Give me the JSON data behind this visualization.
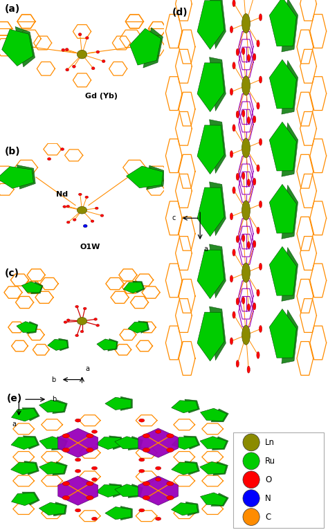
{
  "background_color": "#ffffff",
  "legend_items": [
    {
      "label": "Ln",
      "color": "#8B8B00"
    },
    {
      "label": "Ru",
      "color": "#00cc00"
    },
    {
      "label": "O",
      "color": "#ff0000"
    },
    {
      "label": "N",
      "color": "#0000ff"
    },
    {
      "label": "C",
      "color": "#ff8c00"
    }
  ],
  "colors": {
    "Ln": "#8B8B00",
    "Ru": "#00cc00",
    "O": "#ff0000",
    "N": "#0000ff",
    "C": "#ff8c00",
    "bond": "#ff8c00",
    "purple": "#9900bb",
    "chain": "#9900bb"
  }
}
